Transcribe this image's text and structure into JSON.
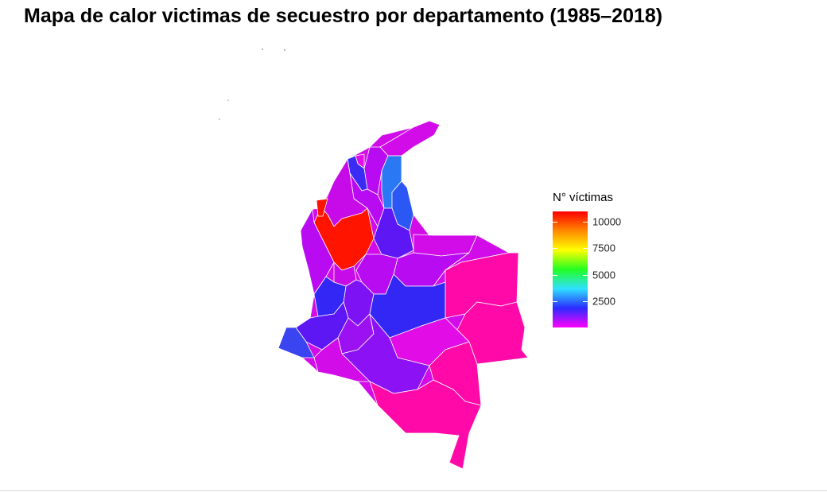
{
  "title": "Mapa de calor victimas de secuestro por departamento (1985–2018)",
  "legend": {
    "title": "N° víctimas",
    "ticks": [
      "10000",
      "7500",
      "5000",
      "2500"
    ],
    "scale_min": 0,
    "scale_max": 11000,
    "gradient_colors": [
      "#ff00ff",
      "#2b2bff",
      "#2fe0ff",
      "#22ff22",
      "#ffff00",
      "#ff8800",
      "#ff0000"
    ]
  },
  "colors": {
    "magenta": "#ff0aa8",
    "pink_violet": "#e10ce6",
    "violet": "#b80bf2",
    "purple": "#8c12f5",
    "blue_violet": "#5d17f5",
    "blue": "#3327f5",
    "light_blue": "#2b78f5",
    "red": "#ff1400"
  }
}
